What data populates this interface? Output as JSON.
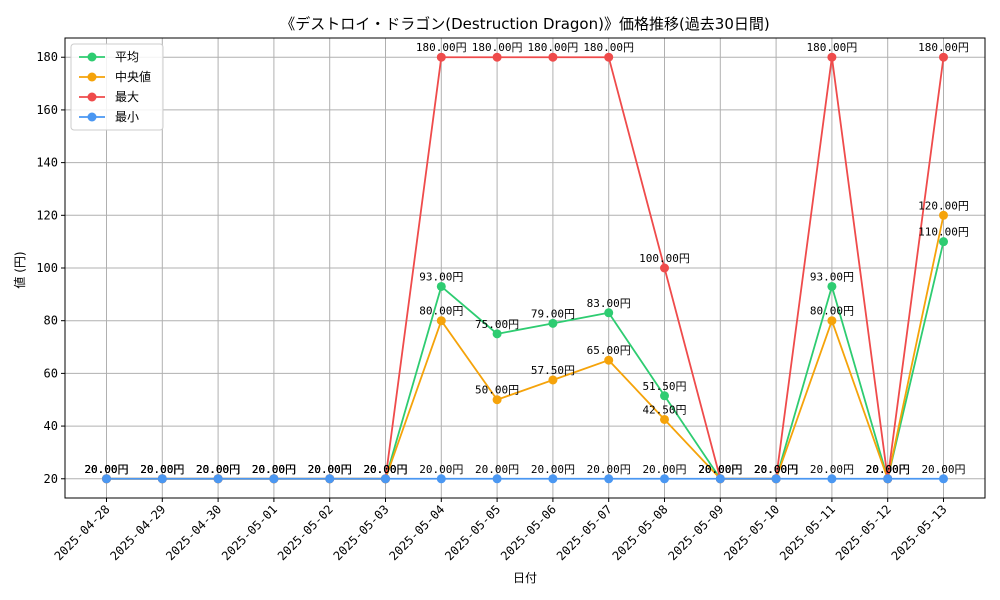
{
  "chart_data": {
    "type": "line",
    "title": "《デストロイ・ドラゴン(Destruction Dragon)》価格推移(過去30日間)",
    "xlabel": "日付",
    "ylabel": "値 (円)",
    "ylim": [
      12.7,
      187.3
    ],
    "yticks": [
      20,
      40,
      60,
      80,
      100,
      120,
      140,
      160,
      180
    ],
    "grid": true,
    "legend_position": "top-left",
    "label_suffix": "円",
    "x": [
      "2025-04-28",
      "2025-04-29",
      "2025-04-30",
      "2025-05-01",
      "2025-05-02",
      "2025-05-03",
      "2025-05-04",
      "2025-05-05",
      "2025-05-06",
      "2025-05-07",
      "2025-05-08",
      "2025-05-09",
      "2025-05-10",
      "2025-05-11",
      "2025-05-12",
      "2025-05-13"
    ],
    "series": [
      {
        "name": "平均",
        "color": "#2ecc71",
        "values": [
          20,
          20,
          20,
          20,
          20,
          20,
          93,
          75,
          79,
          83,
          51.5,
          20,
          20,
          93,
          20,
          110
        ]
      },
      {
        "name": "中央値",
        "color": "#f5a30a",
        "values": [
          20,
          20,
          20,
          20,
          20,
          20,
          80,
          50,
          57.5,
          65,
          42.5,
          20,
          20,
          80,
          20,
          120
        ]
      },
      {
        "name": "最大",
        "color": "#ef4b4b",
        "values": [
          20,
          20,
          20,
          20,
          20,
          20,
          180,
          180,
          180,
          180,
          100,
          20,
          20,
          180,
          20,
          180
        ]
      },
      {
        "name": "最小",
        "color": "#4a97f2",
        "values": [
          20,
          20,
          20,
          20,
          20,
          20,
          20,
          20,
          20,
          20,
          20,
          20,
          20,
          20,
          20,
          20
        ]
      }
    ]
  }
}
